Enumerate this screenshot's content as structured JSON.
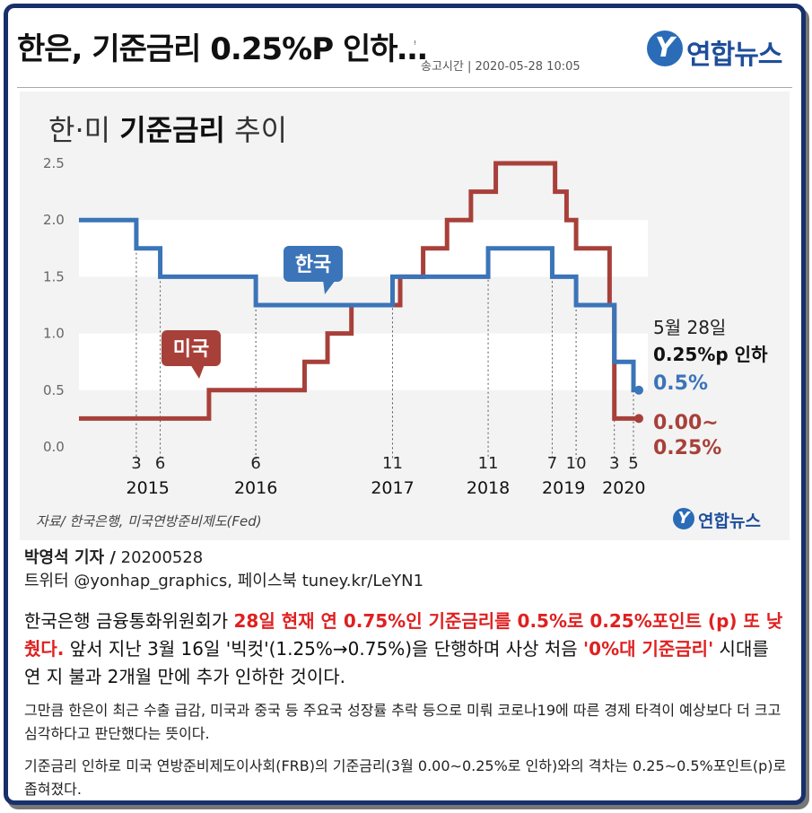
{
  "header": {
    "headline": "한은, 기준금리 0.25%P 인하…",
    "mark": "ꜝ",
    "sent_label": "송고시간 | 2020-05-28 10:05",
    "brand_glyph": "Y",
    "brand": "연합뉴스"
  },
  "graphic": {
    "title_part1": "한·미 ",
    "title_bold": "기준금리",
    "title_part2": " 추이",
    "source": "자료/ 한국은행, 미국연방준비제도(Fed)",
    "brand_glyph": "Y",
    "brand": "연합뉴스"
  },
  "colors": {
    "korea": "#3b74b8",
    "usa": "#a8403a",
    "accent_red": "#e02020",
    "frame": "#17306b"
  },
  "chart_data": {
    "type": "line",
    "title": "한·미 기준금리 추이",
    "ylim": [
      0.0,
      2.5
    ],
    "yticks": [
      "0.0",
      "0.5",
      "1.0",
      "1.5",
      "2.0",
      "2.5"
    ],
    "xlim": [
      2014.6,
      2020.55
    ],
    "grid": "horizontal bands",
    "series": [
      {
        "name": "한국",
        "color": "#3b74b8",
        "step_points": [
          [
            2014.6,
            2.0
          ],
          [
            2015.2,
            1.75
          ],
          [
            2015.45,
            1.5
          ],
          [
            2016.45,
            1.25
          ],
          [
            2017.88,
            1.5
          ],
          [
            2018.88,
            1.75
          ],
          [
            2019.55,
            1.5
          ],
          [
            2019.8,
            1.25
          ],
          [
            2020.2,
            0.75
          ],
          [
            2020.4,
            0.5
          ]
        ]
      },
      {
        "name": "미국",
        "color": "#a8403a",
        "step_points": [
          [
            2014.6,
            0.25
          ],
          [
            2015.96,
            0.5
          ],
          [
            2016.96,
            0.75
          ],
          [
            2017.2,
            1.0
          ],
          [
            2017.45,
            1.25
          ],
          [
            2017.96,
            1.5
          ],
          [
            2018.2,
            1.75
          ],
          [
            2018.45,
            2.0
          ],
          [
            2018.7,
            2.25
          ],
          [
            2018.96,
            2.5
          ],
          [
            2019.58,
            2.25
          ],
          [
            2019.7,
            2.0
          ],
          [
            2019.8,
            1.75
          ],
          [
            2020.15,
            1.25
          ],
          [
            2020.2,
            0.25
          ]
        ]
      }
    ],
    "month_marks": [
      {
        "label": "3",
        "x": 2015.2,
        "series": "한국"
      },
      {
        "label": "6",
        "x": 2015.45,
        "series": "한국"
      },
      {
        "label": "6",
        "x": 2016.45,
        "series": "한국"
      },
      {
        "label": "11",
        "x": 2017.88,
        "series": "한국"
      },
      {
        "label": "11",
        "x": 2018.88,
        "series": "한국"
      },
      {
        "label": "7",
        "x": 2019.55,
        "series": "한국"
      },
      {
        "label": "10",
        "x": 2019.8,
        "series": "한국"
      },
      {
        "label": "3",
        "x": 2020.2,
        "series": "한국"
      },
      {
        "label": "5",
        "x": 2020.4,
        "series": "한국"
      }
    ],
    "year_labels": [
      {
        "label": "2015",
        "x": 2015.32
      },
      {
        "label": "2016",
        "x": 2016.45
      },
      {
        "label": "2017",
        "x": 2017.88
      },
      {
        "label": "2018",
        "x": 2018.88
      },
      {
        "label": "2019",
        "x": 2019.67
      },
      {
        "label": "2020",
        "x": 2020.3
      }
    ],
    "callouts": {
      "korea": "한국",
      "usa": "미국"
    },
    "annotation": {
      "date": "5월 28일",
      "text": "0.25%p 인하",
      "korea_value": "0.5%",
      "usa_value_line1": "0.00~",
      "usa_value_line2": "0.25%"
    }
  },
  "article": {
    "byline_name": "박영석 기자 /",
    "byline_date": " 20200528",
    "social": "트위터 @yonhap_graphics, 페이스북 tuney.kr/LeYN1",
    "lead_1": "한국은행 금융통화위원회가 ",
    "lead_red_1": "28일 현재 연 0.75%인 기준금리를 0.5%로 0.25%포인트 (p) 또 낮췄다.",
    "lead_2": "  앞서 지난 3월 16일 '빅컷'(1.25%→0.75%)을 단행하며 사상 처음 ",
    "lead_red_2": "'0%대 기준금리'",
    "lead_3": " 시대를 연 지 불과 2개월 만에 추가 인하한 것이다.",
    "para_1": "그만큼 한은이 최근 수출 급감, 미국과 중국 등 주요국 성장률 추락 등으로 미뤄 코로나19에 따른 경제 타격이 예상보다 더 크고 심각하다고 판단했다는 뜻이다.",
    "para_2": "기준금리 인하로 미국 연방준비제도이사회(FRB)의 기준금리(3월 0.00∼0.25%로 인하)와의 격차는 0.25∼0.5%포인트(p)로 좁혀졌다."
  }
}
